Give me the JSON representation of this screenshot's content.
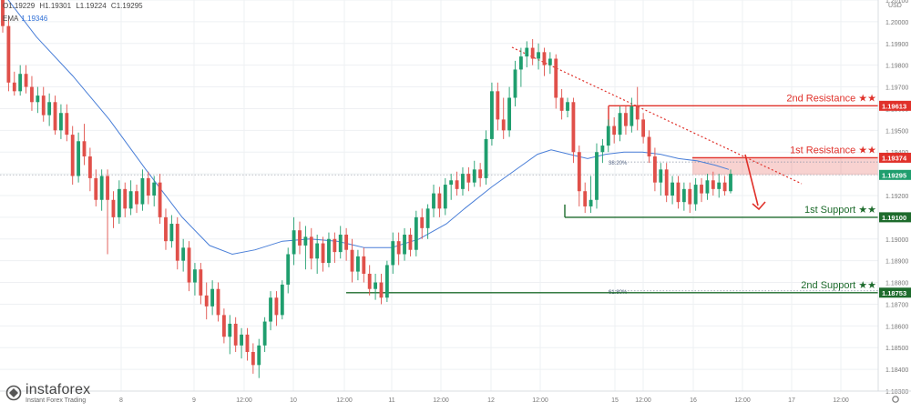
{
  "header": {
    "open": "O1.19229",
    "high": "H1.19301",
    "low": "L1.19224",
    "close": "C1.19295",
    "ema_label": "EMA",
    "ema_value": "1.19346"
  },
  "logo": {
    "name": "instaforex",
    "tagline": "Instant Forex Trading"
  },
  "colors": {
    "up": "#1f9e6e",
    "down": "#e0504a",
    "ema": "#4a7fd8",
    "resistance": "#e0312a",
    "support": "#1d6b2c",
    "grid": "#eef0f3"
  },
  "chart_data": {
    "type": "candlestick",
    "currency": "USD",
    "ylim": [
      1.183,
      1.201
    ],
    "y_ticks": [
      "1.20100",
      "1.20000",
      "1.19900",
      "1.19800",
      "1.19700",
      "1.19600",
      "1.19500",
      "1.19400",
      "1.19300",
      "1.19200",
      "1.19100",
      "1.19000",
      "1.18900",
      "1.18800",
      "1.18700",
      "1.18600",
      "1.18500",
      "1.18400",
      "1.18300"
    ],
    "x_ticks": [
      "8",
      "9",
      "12:00",
      "10",
      "12:00",
      "11",
      "12:00",
      "12",
      "12:00",
      "15",
      "12:00",
      "16",
      "12:00",
      "17",
      "12:00"
    ],
    "levels": [
      {
        "label": "2nd Resistance ★★",
        "price": 1.19613,
        "tag": "1.19613",
        "kind": "resistance"
      },
      {
        "label": "1st Resistance ★★",
        "price": 1.19374,
        "tag": "1.19374",
        "kind": "resistance"
      },
      {
        "label": "1st Support ★★",
        "price": 1.191,
        "tag": "1.19100",
        "kind": "support"
      },
      {
        "label": "2nd Support ★★",
        "price": 1.18753,
        "tag": "1.18753",
        "kind": "support"
      }
    ],
    "current_price": {
      "price": 1.19295,
      "tag": "1.19295"
    },
    "fib_labels": [
      {
        "text": "38.20%",
        "price": 1.19346
      },
      {
        "text": "61.80%",
        "price": 1.18753
      }
    ],
    "ema": [
      [
        0,
        1.2015
      ],
      [
        40,
        1.1993
      ],
      [
        80,
        1.1975
      ],
      [
        120,
        1.1955
      ],
      [
        160,
        1.1932
      ],
      [
        200,
        1.191
      ],
      [
        230,
        1.1897
      ],
      [
        255,
        1.1893
      ],
      [
        280,
        1.1895
      ],
      [
        310,
        1.1899
      ],
      [
        340,
        1.19
      ],
      [
        370,
        1.1899
      ],
      [
        400,
        1.1896
      ],
      [
        430,
        1.1896
      ],
      [
        460,
        1.19
      ],
      [
        490,
        1.1907
      ],
      [
        510,
        1.1914
      ],
      [
        540,
        1.1924
      ],
      [
        570,
        1.1933
      ],
      [
        590,
        1.1939
      ],
      [
        605,
        1.1941
      ],
      [
        625,
        1.1939
      ],
      [
        645,
        1.1937
      ],
      [
        665,
        1.1939
      ],
      [
        685,
        1.194
      ],
      [
        705,
        1.194
      ],
      [
        725,
        1.1939
      ],
      [
        745,
        1.1937
      ],
      [
        765,
        1.1936
      ],
      [
        785,
        1.1934
      ],
      [
        800,
        1.1932
      ]
    ],
    "candles": [
      [
        1.201,
        1.2016,
        1.1995,
        1.1998
      ],
      [
        1.1998,
        1.2002,
        1.1968,
        1.1972
      ],
      [
        1.1972,
        1.1977,
        1.1966,
        1.1968
      ],
      [
        1.1968,
        1.198,
        1.1966,
        1.1976
      ],
      [
        1.1976,
        1.198,
        1.1967,
        1.197
      ],
      [
        1.197,
        1.1975,
        1.1959,
        1.1963
      ],
      [
        1.1963,
        1.197,
        1.1958,
        1.1966
      ],
      [
        1.1966,
        1.197,
        1.1954,
        1.1957
      ],
      [
        1.1957,
        1.1967,
        1.1952,
        1.1963
      ],
      [
        1.1963,
        1.1966,
        1.1948,
        1.195
      ],
      [
        1.195,
        1.1962,
        1.1946,
        1.1958
      ],
      [
        1.1958,
        1.1962,
        1.1945,
        1.1948
      ],
      [
        1.1948,
        1.1952,
        1.1925,
        1.1929
      ],
      [
        1.1929,
        1.1949,
        1.1926,
        1.1945
      ],
      [
        1.1945,
        1.1953,
        1.1934,
        1.1938
      ],
      [
        1.1938,
        1.1942,
        1.1922,
        1.1928
      ],
      [
        1.1928,
        1.1932,
        1.1915,
        1.1918
      ],
      [
        1.1918,
        1.1932,
        1.1913,
        1.1929
      ],
      [
        1.1929,
        1.1932,
        1.1893,
        1.1918
      ],
      [
        1.1918,
        1.1922,
        1.1905,
        1.191
      ],
      [
        1.191,
        1.1927,
        1.1907,
        1.1923
      ],
      [
        1.1923,
        1.1926,
        1.191,
        1.1914
      ],
      [
        1.1914,
        1.1927,
        1.1911,
        1.1922
      ],
      [
        1.1922,
        1.1925,
        1.1912,
        1.1916
      ],
      [
        1.1916,
        1.1932,
        1.1913,
        1.1928
      ],
      [
        1.1928,
        1.1931,
        1.1916,
        1.192
      ],
      [
        1.192,
        1.1929,
        1.1915,
        1.1926
      ],
      [
        1.1926,
        1.193,
        1.1907,
        1.191
      ],
      [
        1.191,
        1.1914,
        1.1895,
        1.1899
      ],
      [
        1.1899,
        1.1911,
        1.1896,
        1.1907
      ],
      [
        1.1907,
        1.191,
        1.1886,
        1.189
      ],
      [
        1.189,
        1.19,
        1.1885,
        1.1896
      ],
      [
        1.1896,
        1.1899,
        1.1876,
        1.188
      ],
      [
        1.188,
        1.1889,
        1.1874,
        1.1886
      ],
      [
        1.1886,
        1.1889,
        1.187,
        1.1874
      ],
      [
        1.1874,
        1.188,
        1.1863,
        1.1869
      ],
      [
        1.1869,
        1.1881,
        1.1865,
        1.1877
      ],
      [
        1.1877,
        1.188,
        1.1862,
        1.1865
      ],
      [
        1.1865,
        1.1868,
        1.1852,
        1.1855
      ],
      [
        1.1855,
        1.1865,
        1.1847,
        1.1861
      ],
      [
        1.1861,
        1.1864,
        1.1848,
        1.1851
      ],
      [
        1.1851,
        1.1859,
        1.1845,
        1.1856
      ],
      [
        1.1856,
        1.1859,
        1.1844,
        1.1848
      ],
      [
        1.1848,
        1.1852,
        1.1838,
        1.1842
      ],
      [
        1.1842,
        1.1854,
        1.1836,
        1.1851
      ],
      [
        1.1851,
        1.1864,
        1.1848,
        1.1862
      ],
      [
        1.1862,
        1.1876,
        1.1858,
        1.1873
      ],
      [
        1.1873,
        1.1876,
        1.186,
        1.1865
      ],
      [
        1.1865,
        1.1881,
        1.1863,
        1.1879
      ],
      [
        1.1879,
        1.1896,
        1.1875,
        1.1893
      ],
      [
        1.1893,
        1.191,
        1.1888,
        1.1904
      ],
      [
        1.1904,
        1.1908,
        1.1893,
        1.1897
      ],
      [
        1.1897,
        1.1906,
        1.1886,
        1.1901
      ],
      [
        1.1901,
        1.1905,
        1.1886,
        1.1891
      ],
      [
        1.1891,
        1.1902,
        1.1884,
        1.1898
      ],
      [
        1.1898,
        1.1901,
        1.1885,
        1.1889
      ],
      [
        1.1889,
        1.1903,
        1.1887,
        1.19
      ],
      [
        1.19,
        1.1903,
        1.1889,
        1.1894
      ],
      [
        1.1894,
        1.1906,
        1.1891,
        1.1902
      ],
      [
        1.1902,
        1.1905,
        1.189,
        1.1895
      ],
      [
        1.1895,
        1.19,
        1.188,
        1.1885
      ],
      [
        1.1885,
        1.1895,
        1.1881,
        1.1892
      ],
      [
        1.1892,
        1.1896,
        1.188,
        1.1884
      ],
      [
        1.1884,
        1.1888,
        1.1874,
        1.1877
      ],
      [
        1.1877,
        1.1884,
        1.1872,
        1.188
      ],
      [
        1.188,
        1.1884,
        1.187,
        1.1873
      ],
      [
        1.1873,
        1.189,
        1.1871,
        1.1888
      ],
      [
        1.1888,
        1.1903,
        1.1884,
        1.1899
      ],
      [
        1.1899,
        1.1903,
        1.1888,
        1.1893
      ],
      [
        1.1893,
        1.1905,
        1.189,
        1.1902
      ],
      [
        1.1902,
        1.1905,
        1.1892,
        1.1895
      ],
      [
        1.1895,
        1.1913,
        1.1892,
        1.191
      ],
      [
        1.191,
        1.1914,
        1.19,
        1.1905
      ],
      [
        1.1905,
        1.1916,
        1.19,
        1.1914
      ],
      [
        1.1914,
        1.1925,
        1.191,
        1.1921
      ],
      [
        1.1921,
        1.1924,
        1.191,
        1.1914
      ],
      [
        1.1914,
        1.1928,
        1.1911,
        1.1925
      ],
      [
        1.1925,
        1.193,
        1.1918,
        1.1927
      ],
      [
        1.1927,
        1.1931,
        1.192,
        1.1923
      ],
      [
        1.1923,
        1.1933,
        1.192,
        1.193
      ],
      [
        1.193,
        1.1933,
        1.1922,
        1.1926
      ],
      [
        1.1926,
        1.1936,
        1.1924,
        1.1932
      ],
      [
        1.1932,
        1.1935,
        1.1924,
        1.1928
      ],
      [
        1.1928,
        1.195,
        1.1925,
        1.1946
      ],
      [
        1.1946,
        1.1972,
        1.1943,
        1.1968
      ],
      [
        1.1968,
        1.1972,
        1.195,
        1.1955
      ],
      [
        1.1955,
        1.1965,
        1.1946,
        1.195
      ],
      [
        1.195,
        1.197,
        1.1947,
        1.1965
      ],
      [
        1.1965,
        1.1982,
        1.1961,
        1.1978
      ],
      [
        1.1978,
        1.1988,
        1.197,
        1.1984
      ],
      [
        1.1984,
        1.1991,
        1.1979,
        1.1988
      ],
      [
        1.1988,
        1.1992,
        1.198,
        1.1983
      ],
      [
        1.1983,
        1.199,
        1.1978,
        1.1986
      ],
      [
        1.1986,
        1.1988,
        1.1975,
        1.198
      ],
      [
        1.198,
        1.1986,
        1.1976,
        1.1983
      ],
      [
        1.1983,
        1.1985,
        1.196,
        1.1965
      ],
      [
        1.1965,
        1.1969,
        1.1955,
        1.1959
      ],
      [
        1.1959,
        1.1965,
        1.1956,
        1.1963
      ],
      [
        1.1963,
        1.1965,
        1.1935,
        1.194
      ],
      [
        1.194,
        1.1943,
        1.1915,
        1.1922
      ],
      [
        1.1922,
        1.1926,
        1.1912,
        1.1915
      ],
      [
        1.1915,
        1.1929,
        1.1912,
        1.1918
      ],
      [
        1.1918,
        1.1944,
        1.1914,
        1.194
      ],
      [
        1.194,
        1.1946,
        1.1935,
        1.1943
      ],
      [
        1.1943,
        1.1955,
        1.194,
        1.1952
      ],
      [
        1.1952,
        1.1956,
        1.1944,
        1.1948
      ],
      [
        1.1948,
        1.1961,
        1.1945,
        1.1958
      ],
      [
        1.1958,
        1.1961,
        1.1948,
        1.1952
      ],
      [
        1.1952,
        1.1965,
        1.1949,
        1.1961
      ],
      [
        1.1961,
        1.197,
        1.195,
        1.1955
      ],
      [
        1.1955,
        1.1958,
        1.1944,
        1.1947
      ],
      [
        1.1947,
        1.195,
        1.1935,
        1.1938
      ],
      [
        1.1938,
        1.1942,
        1.1922,
        1.1926
      ],
      [
        1.1926,
        1.1935,
        1.192,
        1.1932
      ],
      [
        1.1932,
        1.1935,
        1.1917,
        1.192
      ],
      [
        1.192,
        1.1929,
        1.1916,
        1.1926
      ],
      [
        1.1926,
        1.1929,
        1.1914,
        1.1917
      ],
      [
        1.1917,
        1.1926,
        1.1913,
        1.1923
      ],
      [
        1.1923,
        1.1926,
        1.1912,
        1.1916
      ],
      [
        1.1916,
        1.1928,
        1.1913,
        1.1925
      ],
      [
        1.1925,
        1.1928,
        1.1917,
        1.1921
      ],
      [
        1.1921,
        1.193,
        1.1918,
        1.1927
      ],
      [
        1.1927,
        1.1931,
        1.192,
        1.1923
      ],
      [
        1.1923,
        1.193,
        1.1919,
        1.1926
      ],
      [
        1.1926,
        1.1929,
        1.192,
        1.1922
      ],
      [
        1.1922,
        1.1932,
        1.1921,
        1.193
      ]
    ]
  }
}
